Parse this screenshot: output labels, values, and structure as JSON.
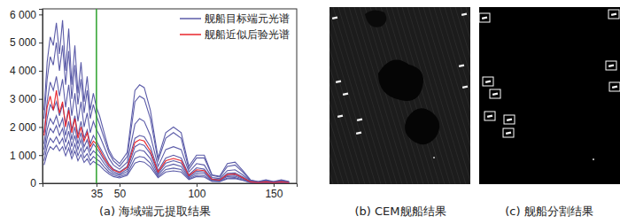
{
  "chart_data": [
    {
      "type": "line",
      "title": "(a) 海域端元提取结果",
      "x": [
        1,
        3,
        5,
        7,
        9,
        11,
        13,
        15,
        17,
        19,
        21,
        23,
        25,
        27,
        29,
        31,
        33,
        35,
        37,
        40,
        43,
        46,
        50,
        55,
        60,
        63,
        66,
        70,
        75,
        80,
        85,
        90,
        95,
        100,
        105,
        110,
        115,
        120,
        125,
        130,
        135,
        140,
        145,
        150,
        155,
        160
      ],
      "xlim": [
        0,
        165
      ],
      "xticks": [
        35,
        50,
        100,
        150
      ],
      "ylim": [
        0,
        6200
      ],
      "yticks": [
        {
          "value": 0,
          "label": "0"
        },
        {
          "value": 1000,
          "label": "1 000"
        },
        {
          "value": 2000,
          "label": "2 000"
        },
        {
          "value": 3000,
          "label": "3 000"
        },
        {
          "value": 4000,
          "label": "4 000"
        },
        {
          "value": 5000,
          "label": "5 000"
        },
        {
          "value": 6000,
          "label": "6 000"
        }
      ],
      "vline": 35,
      "legend": "upper right",
      "series": [
        {
          "name": "舰船目标端元光谱",
          "color": "#5b5ba8",
          "values": [
            2600,
            4300,
            5200,
            4900,
            5700,
            4600,
            5800,
            4000,
            5500,
            3500,
            4900,
            3200,
            4300,
            2900,
            3800,
            2600,
            3200,
            2700,
            2400,
            1800,
            1200,
            900,
            700,
            1100,
            3300,
            3500,
            3400,
            2600,
            900,
            1800,
            2000,
            1800,
            600,
            1000,
            1000,
            300,
            250,
            700,
            750,
            450,
            120,
            60,
            120,
            60,
            120,
            60
          ]
        },
        {
          "color": "#5b5ba8",
          "values": [
            2300,
            3700,
            4500,
            4200,
            5000,
            4000,
            4900,
            3500,
            4700,
            3000,
            4200,
            2800,
            3700,
            2500,
            3300,
            2300,
            2800,
            2400,
            2100,
            1600,
            1100,
            800,
            600,
            950,
            2900,
            3100,
            3000,
            2300,
            800,
            1600,
            1800,
            1600,
            500,
            900,
            900,
            280,
            220,
            600,
            650,
            400,
            100,
            50,
            100,
            50,
            100,
            50
          ]
        },
        {
          "color": "#5b5ba8",
          "values": [
            1800,
            2900,
            3600,
            3300,
            3800,
            3100,
            3700,
            2700,
            3500,
            2400,
            3200,
            2200,
            2900,
            2000,
            2500,
            1800,
            2200,
            1900,
            1700,
            1300,
            900,
            650,
            500,
            750,
            2100,
            2300,
            2200,
            1700,
            600,
            1200,
            1300,
            1200,
            400,
            700,
            650,
            200,
            170,
            450,
            480,
            300,
            80,
            40,
            80,
            40,
            80,
            40
          ]
        },
        {
          "color": "#5b5ba8",
          "values": [
            1400,
            2300,
            2800,
            2600,
            2900,
            2400,
            2800,
            2100,
            2700,
            1900,
            2400,
            1700,
            2200,
            1600,
            1900,
            1400,
            1700,
            1500,
            1300,
            1000,
            700,
            500,
            400,
            600,
            1600,
            1700,
            1650,
            1300,
            450,
            900,
            1000,
            900,
            300,
            550,
            500,
            150,
            130,
            350,
            370,
            230,
            60,
            30,
            60,
            30,
            60,
            30
          ]
        },
        {
          "color": "#5b5ba8",
          "values": [
            1200,
            1900,
            2300,
            2100,
            2400,
            2000,
            2300,
            1700,
            2200,
            1550,
            2000,
            1400,
            1800,
            1300,
            1550,
            1150,
            1400,
            1250,
            1100,
            820,
            580,
            420,
            330,
            500,
            1300,
            1400,
            1350,
            1050,
            360,
            720,
            800,
            720,
            240,
            430,
            400,
            120,
            100,
            280,
            300,
            180,
            45,
            20,
            45,
            20,
            45,
            20
          ]
        },
        {
          "color": "#5b5ba8",
          "values": [
            1000,
            1600,
            1950,
            1800,
            2050,
            1700,
            1950,
            1450,
            1850,
            1300,
            1700,
            1200,
            1550,
            1100,
            1300,
            980,
            1150,
            1050,
            950,
            700,
            500,
            360,
            280,
            420,
            1100,
            1180,
            1140,
            880,
            300,
            600,
            680,
            600,
            200,
            360,
            340,
            100,
            85,
            240,
            250,
            150,
            40,
            20,
            40,
            20,
            40,
            20
          ]
        },
        {
          "color": "#5b5ba8",
          "values": [
            800,
            1300,
            1600,
            1450,
            1650,
            1400,
            1600,
            1200,
            1500,
            1050,
            1400,
            980,
            1250,
            900,
            1050,
            800,
            950,
            860,
            780,
            580,
            410,
            300,
            230,
            340,
            880,
            950,
            920,
            710,
            240,
            490,
            540,
            490,
            160,
            290,
            270,
            80,
            70,
            190,
            200,
            120,
            30,
            15,
            30,
            15,
            30,
            15
          ]
        },
        {
          "color": "#5b5ba8",
          "values": [
            650,
            1050,
            1300,
            1200,
            1350,
            1150,
            1300,
            980,
            1250,
            870,
            1150,
            800,
            1020,
            740,
            870,
            660,
            780,
            700,
            640,
            470,
            340,
            240,
            190,
            280,
            720,
            780,
            750,
            580,
            200,
            400,
            440,
            400,
            130,
            240,
            220,
            65,
            55,
            160,
            170,
            100,
            25,
            10,
            25,
            10,
            25,
            10
          ]
        },
        {
          "name": "舰船近似后验光谱",
          "color": "#e8252b",
          "values": [
            1700,
            2700,
            3100,
            2600,
            3300,
            2500,
            2900,
            2000,
            2600,
            1800,
            2300,
            1600,
            2000,
            1500,
            1800,
            1300,
            1500,
            1400,
            1200,
            900,
            650,
            470,
            380,
            560,
            1450,
            1550,
            1500,
            1150,
            400,
            800,
            880,
            800,
            270,
            480,
            450,
            140,
            110,
            310,
            330,
            200,
            50,
            25,
            50,
            25,
            50,
            25
          ]
        }
      ]
    },
    {
      "type": "image",
      "title": "(b) CEM舰船结果"
    },
    {
      "type": "image",
      "title": "(c) 舰船分割结果"
    }
  ]
}
